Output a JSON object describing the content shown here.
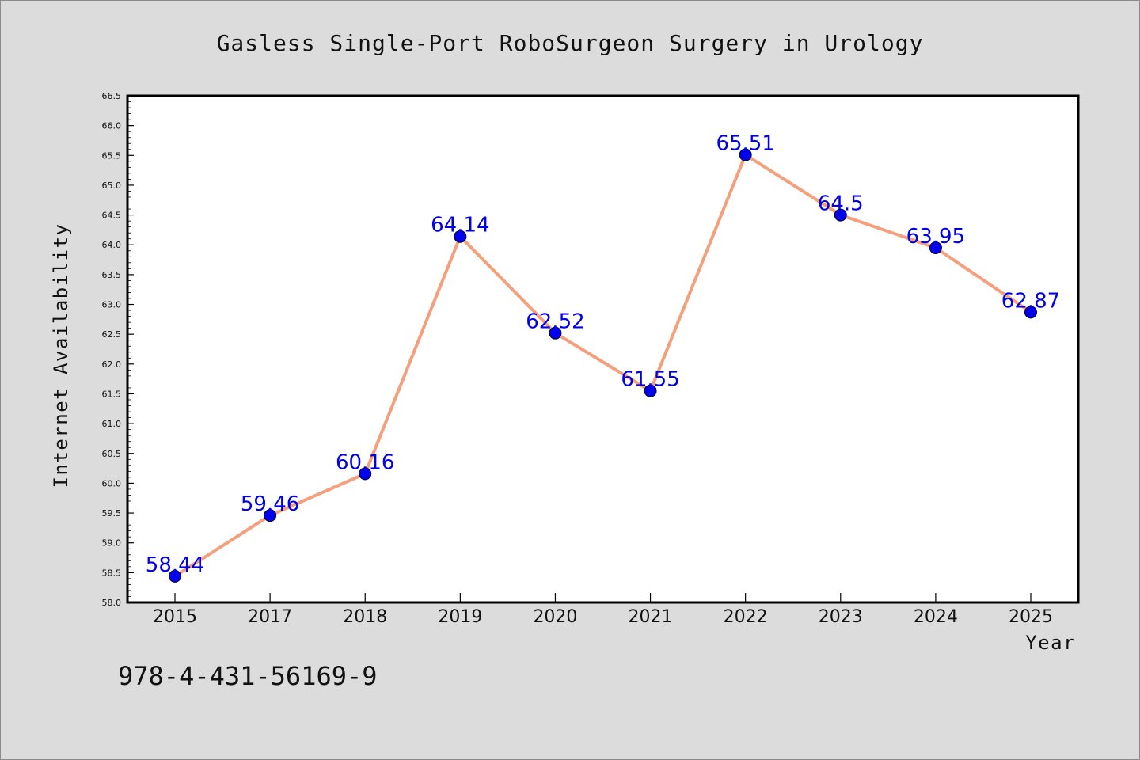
{
  "chart_data": {
    "type": "line",
    "title": "Gasless Single-Port RoboSurgeon Surgery in Urology",
    "xlabel": "Year",
    "ylabel": "Internet Availability",
    "categories": [
      "2015",
      "2017",
      "2018",
      "2019",
      "2020",
      "2021",
      "2022",
      "2023",
      "2024",
      "2025"
    ],
    "series": [
      {
        "values": [
          58.44,
          59.46,
          60.16,
          64.14,
          62.52,
          61.55,
          65.51,
          64.5,
          63.95,
          62.87
        ],
        "labels": [
          "58.44",
          "59.46",
          "60.16",
          "64.14",
          "62.52",
          "61.55",
          "65.51",
          "64.5",
          "63.95",
          "62.87"
        ]
      }
    ],
    "ylim": [
      58.0,
      66.5
    ],
    "yticks": [
      58.0,
      58.5,
      59.0,
      59.5,
      60.0,
      60.5,
      61.0,
      61.5,
      62.0,
      62.5,
      63.0,
      63.5,
      64.0,
      64.5,
      65.0,
      65.5,
      66.0,
      66.5
    ],
    "ytick_labels": [
      "58.0",
      "58.5",
      "59.0",
      "59.5",
      "60.0",
      "60.5",
      "61.0",
      "61.5",
      "62.0",
      "62.5",
      "63.0",
      "63.5",
      "64.0",
      "64.5",
      "65.0",
      "65.5",
      "66.0",
      "66.5"
    ],
    "grid": false,
    "legend": "none",
    "colors": {
      "line": "#f4a07c",
      "marker": "#0000ee",
      "data_label": "#0000ee",
      "background": "#dcdcdc",
      "plot_area": "#ffffff"
    }
  },
  "footer": {
    "code": "978-4-431-56169-9"
  }
}
